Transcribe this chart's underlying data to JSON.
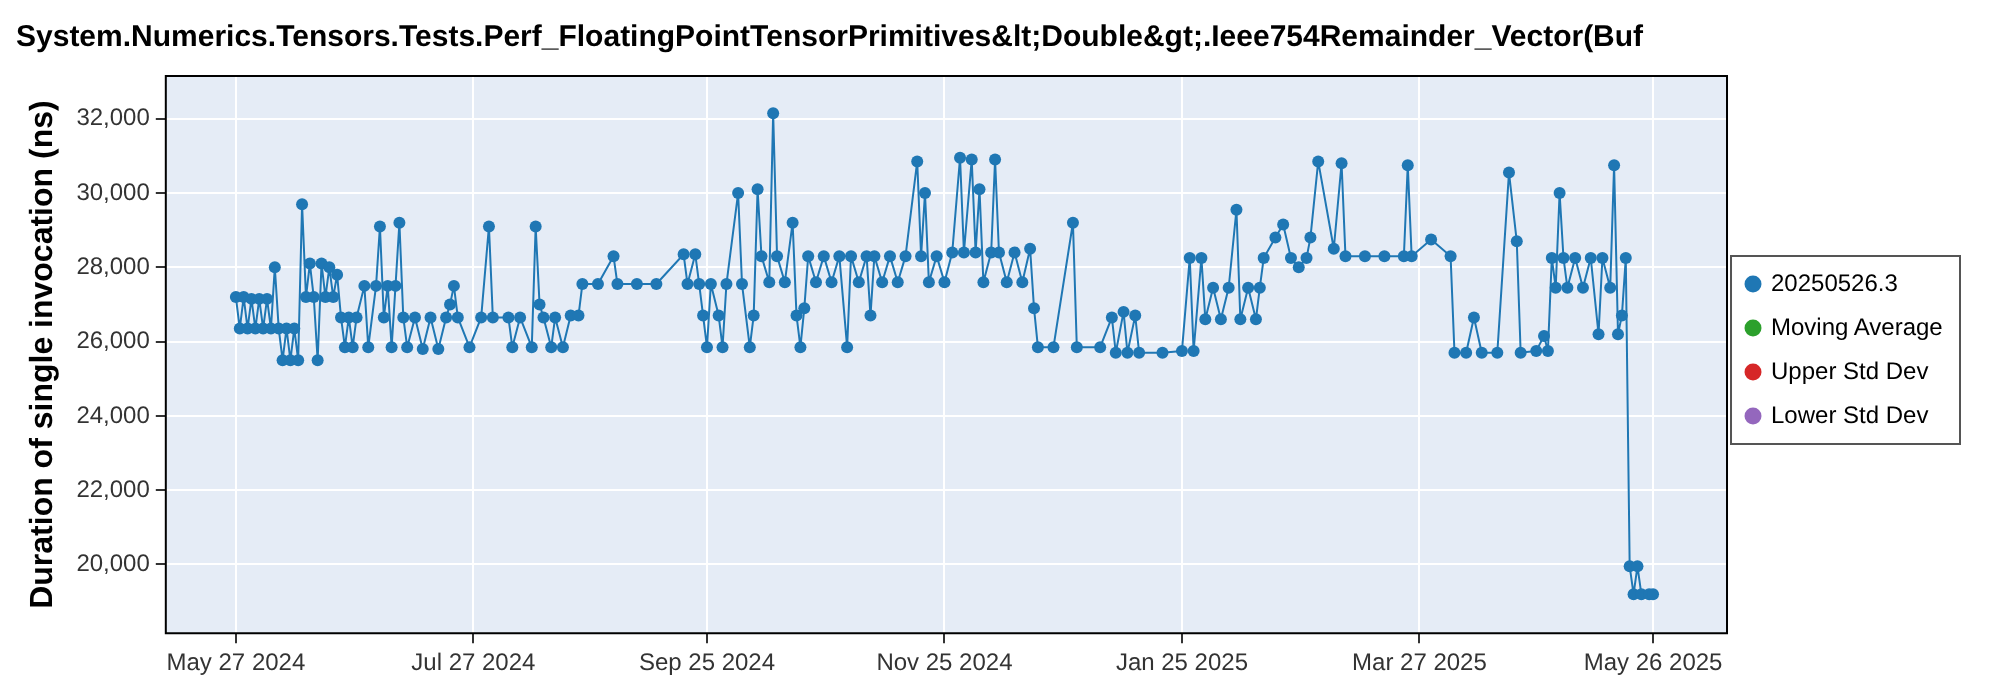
{
  "chart_data": {
    "type": "line",
    "title": "System.Numerics.Tensors.Tests.Perf_FloatingPointTensorPrimitives&lt;Double&gt;.Ieee754Remainder_Vector(Buf",
    "ylabel": "Duration of single invocation (ns)",
    "xlim": [
      "2024-05-09",
      "2025-06-14"
    ],
    "xticks": [
      {
        "value": "2024-05-27",
        "label": "May 27 2024"
      },
      {
        "value": "2024-07-27",
        "label": "Jul 27 2024"
      },
      {
        "value": "2024-09-25",
        "label": "Sep 25 2024"
      },
      {
        "value": "2024-11-25",
        "label": "Nov 25 2024"
      },
      {
        "value": "2025-01-25",
        "label": "Jan 25 2025"
      },
      {
        "value": "2025-03-27",
        "label": "Mar 27 2025"
      },
      {
        "value": "2025-05-26",
        "label": "May 26 2025"
      }
    ],
    "ylim": [
      18150,
      33150
    ],
    "yticks": [
      {
        "value": 20000,
        "label": "20,000"
      },
      {
        "value": 22000,
        "label": "22,000"
      },
      {
        "value": 24000,
        "label": "24,000"
      },
      {
        "value": 26000,
        "label": "26,000"
      },
      {
        "value": 28000,
        "label": "28,000"
      },
      {
        "value": 30000,
        "label": "30,000"
      },
      {
        "value": 32000,
        "label": "32,000"
      }
    ],
    "grid": true,
    "legend": "right",
    "marker": "circle",
    "line_style": "solid",
    "x": [
      "2024-05-27",
      "2024-05-28",
      "2024-05-29",
      "2024-05-30",
      "2024-05-31",
      "2024-06-01",
      "2024-06-02",
      "2024-06-03",
      "2024-06-04",
      "2024-06-05",
      "2024-06-06",
      "2024-06-07",
      "2024-06-08",
      "2024-06-09",
      "2024-06-10",
      "2024-06-11",
      "2024-06-12",
      "2024-06-13",
      "2024-06-14",
      "2024-06-15",
      "2024-06-16",
      "2024-06-17",
      "2024-06-18",
      "2024-06-19",
      "2024-06-20",
      "2024-06-21",
      "2024-06-22",
      "2024-06-23",
      "2024-06-24",
      "2024-06-25",
      "2024-06-26",
      "2024-06-27",
      "2024-06-29",
      "2024-06-30",
      "2024-07-02",
      "2024-07-03",
      "2024-07-04",
      "2024-07-05",
      "2024-07-06",
      "2024-07-07",
      "2024-07-08",
      "2024-07-09",
      "2024-07-10",
      "2024-07-12",
      "2024-07-14",
      "2024-07-16",
      "2024-07-18",
      "2024-07-20",
      "2024-07-21",
      "2024-07-22",
      "2024-07-23",
      "2024-07-26",
      "2024-07-29",
      "2024-07-31",
      "2024-08-01",
      "2024-08-05",
      "2024-08-06",
      "2024-08-08",
      "2024-08-11",
      "2024-08-12",
      "2024-08-13",
      "2024-08-14",
      "2024-08-16",
      "2024-08-17",
      "2024-08-19",
      "2024-08-21",
      "2024-08-23",
      "2024-08-24",
      "2024-08-28",
      "2024-09-01",
      "2024-09-02",
      "2024-09-07",
      "2024-09-12",
      "2024-09-19",
      "2024-09-20",
      "2024-09-22",
      "2024-09-23",
      "2024-09-24",
      "2024-09-25",
      "2024-09-26",
      "2024-09-28",
      "2024-09-29",
      "2024-09-30",
      "2024-10-03",
      "2024-10-04",
      "2024-10-06",
      "2024-10-07",
      "2024-10-08",
      "2024-10-09",
      "2024-10-11",
      "2024-10-12",
      "2024-10-13",
      "2024-10-15",
      "2024-10-17",
      "2024-10-18",
      "2024-10-19",
      "2024-10-20",
      "2024-10-21",
      "2024-10-23",
      "2024-10-25",
      "2024-10-27",
      "2024-10-29",
      "2024-10-31",
      "2024-11-01",
      "2024-11-03",
      "2024-11-05",
      "2024-11-06",
      "2024-11-07",
      "2024-11-09",
      "2024-11-11",
      "2024-11-13",
      "2024-11-15",
      "2024-11-18",
      "2024-11-19",
      "2024-11-20",
      "2024-11-21",
      "2024-11-23",
      "2024-11-25",
      "2024-11-27",
      "2024-11-29",
      "2024-11-30",
      "2024-12-02",
      "2024-12-03",
      "2024-12-04",
      "2024-12-05",
      "2024-12-07",
      "2024-12-08",
      "2024-12-09",
      "2024-12-11",
      "2024-12-13",
      "2024-12-15",
      "2024-12-17",
      "2024-12-18",
      "2024-12-19",
      "2024-12-23",
      "2024-12-28",
      "2024-12-29",
      "2025-01-04",
      "2025-01-07",
      "2025-01-08",
      "2025-01-10",
      "2025-01-11",
      "2025-01-13",
      "2025-01-14",
      "2025-01-20",
      "2025-01-25",
      "2025-01-27",
      "2025-01-28",
      "2025-01-30",
      "2025-01-31",
      "2025-02-02",
      "2025-02-04",
      "2025-02-06",
      "2025-02-08",
      "2025-02-09",
      "2025-02-11",
      "2025-02-13",
      "2025-02-14",
      "2025-02-15",
      "2025-02-18",
      "2025-02-20",
      "2025-02-22",
      "2025-02-24",
      "2025-02-26",
      "2025-02-27",
      "2025-03-01",
      "2025-03-05",
      "2025-03-07",
      "2025-03-08",
      "2025-03-13",
      "2025-03-18",
      "2025-03-23",
      "2025-03-24",
      "2025-03-25",
      "2025-03-30",
      "2025-04-04",
      "2025-04-05",
      "2025-04-08",
      "2025-04-10",
      "2025-04-12",
      "2025-04-16",
      "2025-04-19",
      "2025-04-21",
      "2025-04-22",
      "2025-04-26",
      "2025-04-28",
      "2025-04-29",
      "2025-04-30",
      "2025-05-01",
      "2025-05-02",
      "2025-05-03",
      "2025-05-04",
      "2025-05-06",
      "2025-05-08",
      "2025-05-10",
      "2025-05-12",
      "2025-05-13",
      "2025-05-15",
      "2025-05-16",
      "2025-05-17",
      "2025-05-18",
      "2025-05-19",
      "2025-05-20",
      "2025-05-21",
      "2025-05-22",
      "2025-05-23",
      "2025-05-25",
      "2025-05-26"
    ],
    "series": [
      {
        "name": "20250526.3",
        "color": "#1f77b4",
        "values": [
          27200,
          26350,
          27200,
          26350,
          27150,
          26350,
          27150,
          26350,
          27150,
          26350,
          28000,
          26350,
          25500,
          26350,
          25500,
          26350,
          25500,
          29700,
          27200,
          28100,
          27200,
          25500,
          28100,
          27200,
          28000,
          27200,
          27800,
          26650,
          25850,
          26650,
          25850,
          26650,
          27500,
          25850,
          27500,
          29100,
          26650,
          27500,
          25850,
          27500,
          29200,
          26650,
          25850,
          26650,
          25800,
          26650,
          25800,
          26650,
          27000,
          27500,
          26650,
          25850,
          26650,
          29100,
          26650,
          26650,
          25850,
          26650,
          25850,
          29100,
          27000,
          26650,
          25850,
          26650,
          25850,
          26700,
          26700,
          27550,
          27550,
          28300,
          27550,
          27550,
          27550,
          28350,
          27550,
          28350,
          27550,
          26700,
          25850,
          27550,
          26700,
          25850,
          27550,
          30000,
          27550,
          25850,
          26700,
          30100,
          28300,
          27600,
          32150,
          28300,
          27600,
          29200,
          26700,
          25850,
          26900,
          28300,
          27600,
          28300,
          27600,
          28300,
          25850,
          28300,
          27600,
          28300,
          26700,
          28300,
          27600,
          28300,
          27600,
          28300,
          30850,
          28300,
          30000,
          27600,
          28300,
          27600,
          28400,
          30950,
          28400,
          30900,
          28400,
          30100,
          27600,
          28400,
          30900,
          28400,
          27600,
          28400,
          27600,
          28500,
          26900,
          25850,
          25850,
          29200,
          25850,
          25850,
          26650,
          25700,
          26800,
          25700,
          26700,
          25700,
          25700,
          25750,
          28250,
          25750,
          28250,
          26600,
          27450,
          26600,
          27450,
          29550,
          26600,
          27450,
          26600,
          27450,
          28250,
          28800,
          29150,
          28250,
          28000,
          28250,
          28800,
          30850,
          28500,
          30800,
          28300,
          28300,
          28300,
          28300,
          30750,
          28300,
          28750,
          28300,
          25700,
          25700,
          26650,
          25700,
          25700,
          30550,
          28700,
          25700,
          25750,
          26150,
          25750,
          28250,
          27450,
          30000,
          28250,
          27450,
          28250,
          27450,
          28250,
          26200,
          28250,
          27450,
          30750,
          26200,
          26700,
          28250,
          19950,
          19200,
          19950,
          19200,
          19200,
          19200
        ]
      },
      {
        "name": "Moving Average",
        "color": "#2ca02c",
        "values": [
          null,
          null,
          null,
          null,
          null,
          null,
          null,
          null,
          null,
          null,
          null,
          null,
          null,
          null,
          null,
          null,
          null,
          null,
          null,
          null,
          null,
          null,
          null,
          null,
          null,
          null,
          null,
          null,
          null,
          null,
          null,
          null,
          null,
          null,
          null,
          null,
          null,
          null,
          null,
          null,
          null,
          null,
          null,
          null,
          null,
          null,
          null,
          null,
          null,
          null,
          null,
          null,
          null,
          null,
          null,
          null,
          null,
          null,
          null,
          null,
          null,
          null,
          null,
          null,
          null,
          null,
          null,
          null,
          null,
          null,
          null,
          null,
          null,
          null,
          null,
          null,
          null,
          null,
          null,
          null,
          null,
          null,
          null,
          null,
          null,
          null,
          null,
          null,
          null,
          null,
          null,
          null,
          null,
          null,
          null,
          null,
          null,
          null,
          null,
          null,
          null,
          null,
          null,
          null,
          null,
          null,
          null,
          null,
          null,
          null,
          null,
          null,
          null,
          null,
          null,
          null,
          null,
          null,
          null,
          null,
          null,
          null,
          null,
          null,
          null,
          null,
          null,
          null,
          null,
          null,
          null,
          null,
          null,
          null,
          null,
          null,
          null,
          null,
          null,
          null,
          null,
          null,
          null,
          null,
          null,
          null,
          null,
          null,
          null,
          null,
          null,
          null,
          null,
          null,
          null,
          null,
          null,
          null,
          null,
          null,
          null,
          null,
          null,
          null,
          null,
          null,
          null,
          null,
          null,
          null,
          null,
          null,
          null,
          null,
          null,
          null,
          null,
          null,
          null,
          null,
          null,
          null,
          null,
          null,
          null,
          null,
          null,
          null,
          null,
          null,
          null,
          null,
          null,
          null,
          null,
          null,
          null,
          null,
          null,
          null,
          null,
          null,
          null,
          null,
          null,
          null,
          null,
          null
        ]
      },
      {
        "name": "Upper Std Dev",
        "color": "#d62728",
        "values": [
          null,
          null,
          null,
          null,
          null,
          null,
          null,
          null,
          null,
          null,
          null,
          null,
          null,
          null,
          null,
          null,
          null,
          null,
          null,
          null,
          null,
          null,
          null,
          null,
          null,
          null,
          null,
          null,
          null,
          null,
          null,
          null,
          null,
          null,
          null,
          null,
          null,
          null,
          null,
          null,
          null,
          null,
          null,
          null,
          null,
          null,
          null,
          null,
          null,
          null,
          null,
          null,
          null,
          null,
          null,
          null,
          null,
          null,
          null,
          null,
          null,
          null,
          null,
          null,
          null,
          null,
          null,
          null,
          null,
          null,
          null,
          null,
          null,
          null,
          null,
          null,
          null,
          null,
          null,
          null,
          null,
          null,
          null,
          null,
          null,
          null,
          null,
          null,
          null,
          null,
          null,
          null,
          null,
          null,
          null,
          null,
          null,
          null,
          null,
          null,
          null,
          null,
          null,
          null,
          null,
          null,
          null,
          null,
          null,
          null,
          null,
          null,
          null,
          null,
          null,
          null,
          null,
          null,
          null,
          null,
          null,
          null,
          null,
          null,
          null,
          null,
          null,
          null,
          null,
          null,
          null,
          null,
          null,
          null,
          null,
          null,
          null,
          null,
          null,
          null,
          null,
          null,
          null,
          null,
          null,
          null,
          null,
          null,
          null,
          null,
          null,
          null,
          null,
          null,
          null,
          null,
          null,
          null,
          null,
          null,
          null,
          null,
          null,
          null,
          null,
          null,
          null,
          null,
          null,
          null,
          null,
          null,
          null,
          null,
          null,
          null,
          null,
          null,
          null,
          null,
          null,
          null,
          null,
          null,
          null,
          null,
          null,
          null,
          null,
          null,
          null,
          null,
          null,
          null,
          null,
          null,
          null,
          null,
          null,
          null,
          null,
          null,
          null,
          null,
          null,
          null,
          null,
          null
        ]
      },
      {
        "name": "Lower Std Dev",
        "color": "#9467bd",
        "values": [
          null,
          null,
          null,
          null,
          null,
          null,
          null,
          null,
          null,
          null,
          null,
          null,
          null,
          null,
          null,
          null,
          null,
          null,
          null,
          null,
          null,
          null,
          null,
          null,
          null,
          null,
          null,
          null,
          null,
          null,
          null,
          null,
          null,
          null,
          null,
          null,
          null,
          null,
          null,
          null,
          null,
          null,
          null,
          null,
          null,
          null,
          null,
          null,
          null,
          null,
          null,
          null,
          null,
          null,
          null,
          null,
          null,
          null,
          null,
          null,
          null,
          null,
          null,
          null,
          null,
          null,
          null,
          null,
          null,
          null,
          null,
          null,
          null,
          null,
          null,
          null,
          null,
          null,
          null,
          null,
          null,
          null,
          null,
          null,
          null,
          null,
          null,
          null,
          null,
          null,
          null,
          null,
          null,
          null,
          null,
          null,
          null,
          null,
          null,
          null,
          null,
          null,
          null,
          null,
          null,
          null,
          null,
          null,
          null,
          null,
          null,
          null,
          null,
          null,
          null,
          null,
          null,
          null,
          null,
          null,
          null,
          null,
          null,
          null,
          null,
          null,
          null,
          null,
          null,
          null,
          null,
          null,
          null,
          null,
          null,
          null,
          null,
          null,
          null,
          null,
          null,
          null,
          null,
          null,
          null,
          null,
          null,
          null,
          null,
          null,
          null,
          null,
          null,
          null,
          null,
          null,
          null,
          null,
          null,
          null,
          null,
          null,
          null,
          null,
          null,
          null,
          null,
          null,
          null,
          null,
          null,
          null,
          null,
          null,
          null,
          null,
          null,
          null,
          null,
          null,
          null,
          null,
          null,
          null,
          null,
          null,
          null,
          null,
          null,
          null,
          null,
          null,
          null,
          null,
          null,
          null,
          null,
          null,
          null,
          null,
          null,
          null,
          null,
          null,
          null,
          null,
          null,
          null
        ]
      }
    ]
  }
}
